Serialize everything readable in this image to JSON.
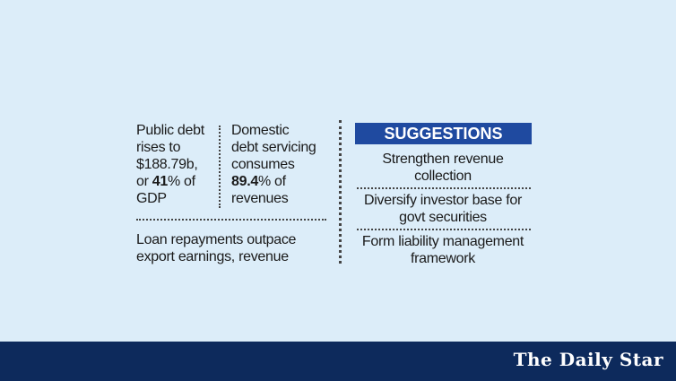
{
  "left": {
    "cell1": {
      "l1": "Public debt",
      "l2": "rises to",
      "l3": "$188.79b,",
      "l4a": "or ",
      "l4b": "41",
      "l4c": "% of",
      "l5": "GDP"
    },
    "cell2": {
      "l1": "Domestic",
      "l2": "debt servicing",
      "l3": "consumes",
      "l4b": "89.4",
      "l4c": "% of",
      "l5": "revenues"
    },
    "cell3": {
      "l1": "Loan repayments outpace",
      "l2": "export earnings, revenue"
    }
  },
  "suggestions": {
    "heading": "SUGGESTIONS",
    "items": [
      {
        "l1": "Strengthen revenue",
        "l2": "collection"
      },
      {
        "l1": "Diversify investor base for",
        "l2": "govt securities"
      },
      {
        "l1": "Form liability management",
        "l2": "framework"
      }
    ]
  },
  "footer": {
    "brand": "The Daily Star"
  },
  "colors": {
    "background": "#dcedf9",
    "heading": "#1f4aa0",
    "footer": "#0d2a5c"
  }
}
